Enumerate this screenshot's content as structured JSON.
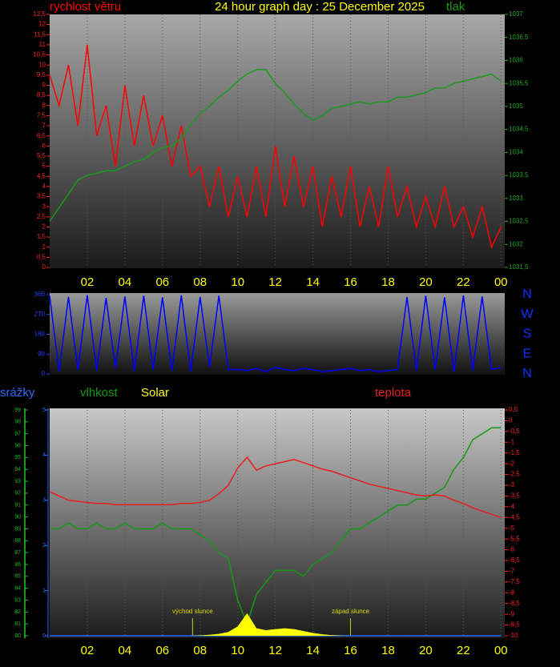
{
  "chart_data": [
    {
      "type": "line",
      "title": "24 hour graph day : 25 December 2025",
      "grid": true,
      "x": [
        0,
        0.5,
        1,
        1.5,
        2,
        2.5,
        3,
        3.5,
        4,
        4.5,
        5,
        5.5,
        6,
        6.5,
        7,
        7.5,
        8,
        8.5,
        9,
        9.5,
        10,
        10.5,
        11,
        11.5,
        12,
        12.5,
        13,
        13.5,
        14,
        14.5,
        15,
        15.5,
        16,
        16.5,
        17,
        17.5,
        18,
        18.5,
        19,
        19.5,
        20,
        20.5,
        21,
        21.5,
        22,
        22.5,
        23,
        23.5,
        24
      ],
      "xlim": [
        0,
        24.2
      ],
      "xticks": [
        {
          "value": 2,
          "label": "02"
        },
        {
          "value": 4,
          "label": "04"
        },
        {
          "value": 6,
          "label": "06"
        },
        {
          "value": 8,
          "label": "08"
        },
        10,
        12,
        14,
        16,
        18,
        20,
        22,
        {
          "value": 24,
          "label": "00"
        }
      ],
      "ylim": [
        0,
        12.5
      ],
      "yticks": [
        0,
        {
          "value": 0.5,
          "label": "0,5"
        },
        1,
        {
          "value": 1.5,
          "label": "1,5"
        },
        2,
        {
          "value": 2.5,
          "label": "2,5"
        },
        3,
        {
          "value": 3.5,
          "label": "3,5"
        },
        4,
        {
          "value": 4.5,
          "label": "4,5"
        },
        5,
        {
          "value": 5.5,
          "label": "5,5"
        },
        6,
        {
          "value": 6.5,
          "label": "6,5"
        },
        7,
        {
          "value": 7.5,
          "label": "7,5"
        },
        8,
        {
          "value": 8.5,
          "label": "8,5"
        },
        9,
        {
          "value": 9.5,
          "label": "9,5"
        },
        10,
        {
          "value": 10.5,
          "label": "10,5"
        },
        11,
        {
          "value": 11.5,
          "label": "11,5"
        },
        12,
        {
          "value": 12.5,
          "label": "12,5"
        }
      ],
      "y2lim": [
        1031.5,
        1037
      ],
      "y2ticks": [
        {
          "value": 1031.5,
          "label": "1031,5"
        },
        1032,
        {
          "value": 1032.5,
          "label": "1032,5"
        },
        1033,
        {
          "value": 1033.5,
          "label": "1033,5"
        },
        1034,
        {
          "value": 1034.5,
          "label": "1034,5"
        },
        1035,
        {
          "value": 1035.5,
          "label": "1035,5"
        },
        1036,
        {
          "value": 1036.5,
          "label": "1036,5"
        },
        1037
      ],
      "series": [
        {
          "name": "rychlost větru",
          "color": "#ff0000",
          "axis": "y",
          "values": [
            9.5,
            8,
            10,
            7,
            11,
            6.5,
            8,
            5,
            9,
            6,
            8.5,
            6,
            7.5,
            5,
            7,
            4.5,
            5,
            3,
            5,
            2.5,
            4.5,
            2.5,
            5,
            2.5,
            6,
            3,
            5.5,
            3,
            5,
            2,
            4.5,
            2.5,
            5,
            2,
            4,
            2,
            5,
            2.5,
            4,
            2,
            3.5,
            2,
            4,
            2,
            3,
            1.5,
            3,
            1,
            2
          ]
        },
        {
          "name": "tlak",
          "color": "#1a9a1a",
          "axis": "y2",
          "values": [
            1032.5,
            1032.8,
            1033.1,
            1033.4,
            1033.5,
            1033.55,
            1033.6,
            1033.6,
            1033.7,
            1033.8,
            1033.85,
            1034,
            1034.1,
            1034.15,
            1034.3,
            1034.6,
            1034.85,
            1035,
            1035.2,
            1035.35,
            1035.55,
            1035.7,
            1035.8,
            1035.8,
            1035.5,
            1035.3,
            1035.05,
            1034.85,
            1034.7,
            1034.8,
            1034.95,
            1035,
            1035.05,
            1035.1,
            1035.05,
            1035.1,
            1035.1,
            1035.2,
            1035.2,
            1035.25,
            1035.3,
            1035.4,
            1035.4,
            1035.5,
            1035.55,
            1035.6,
            1035.65,
            1035.7,
            1035.55
          ]
        }
      ]
    },
    {
      "type": "line",
      "x": [
        0,
        0.5,
        1,
        1.5,
        2,
        2.5,
        3,
        3.5,
        4,
        4.5,
        5,
        5.5,
        6,
        6.5,
        7,
        7.5,
        8,
        8.5,
        9,
        9.5,
        10,
        10.5,
        11,
        11.5,
        12,
        12.5,
        13,
        13.5,
        14,
        14.5,
        15,
        15.5,
        16,
        16.5,
        17,
        17.5,
        18,
        18.5,
        19,
        19.5,
        20,
        20.5,
        21,
        21.5,
        22,
        22.5,
        23,
        23.5,
        24
      ],
      "xlim": [
        0,
        24.2
      ],
      "ylim": [
        0,
        360
      ],
      "yticks": [
        0,
        90,
        180,
        270,
        360
      ],
      "y2lim": [
        0,
        360
      ],
      "y2ticks": [
        {
          "value": 360,
          "label": "N"
        },
        {
          "value": 270,
          "label": "W"
        },
        {
          "value": 180,
          "label": "S"
        },
        {
          "value": 90,
          "label": "E"
        },
        {
          "value": 0,
          "label": "N"
        }
      ],
      "series": [
        {
          "color": "#0000ff",
          "axis": "y",
          "values": [
            355,
            10,
            350,
            20,
            358,
            15,
            345,
            25,
            352,
            12,
            355,
            20,
            348,
            15,
            357,
            10,
            350,
            30,
            355,
            20,
            20,
            15,
            25,
            10,
            30,
            20,
            15,
            25,
            20,
            10,
            15,
            20,
            25,
            15,
            20,
            10,
            15,
            20,
            350,
            15,
            355,
            20,
            348,
            10,
            356,
            15,
            352,
            20,
            30
          ]
        }
      ]
    },
    {
      "type": "line",
      "grid": true,
      "x": [
        0,
        0.5,
        1,
        1.5,
        2,
        2.5,
        3,
        3.5,
        4,
        4.5,
        5,
        5.5,
        6,
        6.5,
        7,
        7.5,
        8,
        8.5,
        9,
        9.5,
        10,
        10.5,
        11,
        11.5,
        12,
        12.5,
        13,
        13.5,
        14,
        14.5,
        15,
        15.5,
        16,
        16.5,
        17,
        17.5,
        18,
        18.5,
        19,
        19.5,
        20,
        20.5,
        21,
        21.5,
        22,
        22.5,
        23,
        23.5,
        24
      ],
      "xlim": [
        0,
        24.2
      ],
      "xticks": [
        {
          "value": 2,
          "label": "02"
        },
        {
          "value": 4,
          "label": "04"
        },
        {
          "value": 6,
          "label": "06"
        },
        {
          "value": 8,
          "label": "08"
        },
        10,
        12,
        14,
        16,
        18,
        20,
        22,
        {
          "value": 24,
          "label": "00"
        }
      ],
      "ylim": [
        80,
        99
      ],
      "yticks": [
        80,
        81,
        82,
        83,
        84,
        85,
        86,
        87,
        88,
        89,
        90,
        91,
        92,
        93,
        94,
        95,
        96,
        97,
        98,
        99
      ],
      "y2lim": [
        -10,
        0.5
      ],
      "y2ticks": [
        -10,
        {
          "value": -9.5,
          "label": "-9,5"
        },
        -9,
        {
          "value": -8.5,
          "label": "-8,5"
        },
        -8,
        {
          "value": -7.5,
          "label": "-7,5"
        },
        -7,
        {
          "value": -6.5,
          "label": "-6,5"
        },
        -6,
        {
          "value": -5.5,
          "label": "-5,5"
        },
        -5,
        {
          "value": -4.5,
          "label": "-4,5"
        },
        -4,
        {
          "value": -3.5,
          "label": "-3,5"
        },
        -3,
        {
          "value": -2.5,
          "label": "-2,5"
        },
        -2,
        {
          "value": -1.5,
          "label": "-1,5"
        },
        -1,
        {
          "value": -0.5,
          "label": "-0,5"
        },
        0,
        {
          "value": 0.5,
          "label": "0,5"
        }
      ],
      "y3lim": [
        0,
        5
      ],
      "y3ticks": [
        0,
        1,
        2,
        3,
        4,
        5
      ],
      "y4lim": [
        0,
        1200
      ],
      "annotations": [
        {
          "text": "východ slunce",
          "x": 7.6
        },
        {
          "text": "západ slunce",
          "x": 16
        }
      ],
      "series": [
        {
          "name": "srážky",
          "color": "#2a6cff",
          "axis": "y3",
          "values": [
            0,
            0,
            0,
            0,
            0,
            0,
            0,
            0,
            0,
            0,
            0,
            0,
            0,
            0,
            0,
            0,
            0,
            0,
            0,
            0,
            0,
            0,
            0,
            0,
            0,
            0,
            0,
            0,
            0,
            0,
            0,
            0,
            0,
            0,
            0,
            0,
            0,
            0,
            0,
            0,
            0,
            0,
            0,
            0,
            0,
            0,
            0,
            0,
            0
          ]
        },
        {
          "name": "vlhkost",
          "color": "#139a13",
          "axis": "y",
          "values": [
            89,
            89,
            89.5,
            89,
            89,
            89.5,
            89,
            89,
            89.5,
            89,
            89,
            89,
            89.5,
            89,
            89,
            89,
            88.5,
            88,
            87,
            86.5,
            83,
            81,
            83.5,
            84.5,
            85.5,
            85.5,
            85.5,
            85,
            86,
            86.5,
            87,
            88,
            89,
            89,
            89.5,
            90,
            90.5,
            91,
            91,
            91.5,
            91.5,
            92,
            92.5,
            94,
            95,
            96.5,
            97,
            97.5,
            97.5
          ]
        },
        {
          "name": "Solar",
          "color": "#ffff00",
          "axis": "y4",
          "fill": true,
          "values": [
            0,
            0,
            0,
            0,
            0,
            0,
            0,
            0,
            0,
            0,
            0,
            0,
            0,
            0,
            0,
            0,
            2,
            5,
            10,
            20,
            50,
            120,
            40,
            30,
            35,
            40,
            35,
            25,
            15,
            8,
            3,
            1,
            0,
            0,
            0,
            0,
            0,
            0,
            0,
            0,
            0,
            0,
            0,
            0,
            0,
            0,
            0,
            0,
            0
          ]
        },
        {
          "name": "teplota",
          "color": "#e81c1c",
          "axis": "y2",
          "values": [
            -3.3,
            -3.5,
            -3.7,
            -3.75,
            -3.8,
            -3.85,
            -3.85,
            -3.9,
            -3.9,
            -3.9,
            -3.9,
            -3.9,
            -3.9,
            -3.9,
            -3.85,
            -3.85,
            -3.8,
            -3.7,
            -3.4,
            -3,
            -2.2,
            -1.7,
            -2.3,
            -2.1,
            -2,
            -1.9,
            -1.8,
            -1.95,
            -2.1,
            -2.25,
            -2.35,
            -2.5,
            -2.65,
            -2.8,
            -2.95,
            -3.05,
            -3.15,
            -3.25,
            -3.35,
            -3.45,
            -3.5,
            -3.45,
            -3.5,
            -3.7,
            -3.85,
            -4.05,
            -4.2,
            -4.35,
            -4.5
          ]
        }
      ]
    }
  ]
}
